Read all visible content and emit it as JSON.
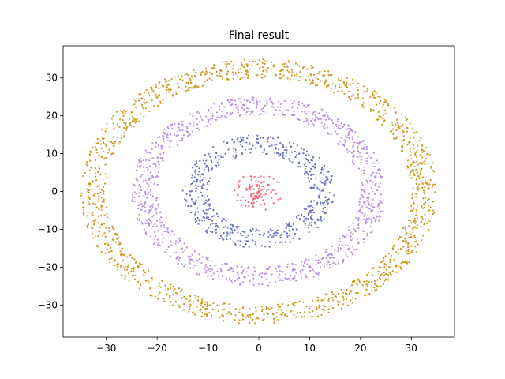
{
  "chart_data": {
    "type": "scatter",
    "title": "Final result",
    "xlabel": "",
    "ylabel": "",
    "xlim": [
      -38.5,
      38.5
    ],
    "ylim": [
      -38.5,
      38.5
    ],
    "xticks": [
      -30,
      -20,
      -10,
      0,
      10,
      20,
      30
    ],
    "yticks": [
      -30,
      -20,
      -10,
      0,
      10,
      20,
      30
    ],
    "grid": false,
    "legend": "none",
    "series": [
      {
        "color": "#f06b7a",
        "ring": {
          "inner_radius": 0,
          "outer_radius": 5,
          "count": 110
        }
      },
      {
        "color": "#6a72c4",
        "ring": {
          "inner_radius": 10,
          "outer_radius": 15,
          "count": 560
        }
      },
      {
        "color": "#b98ee0",
        "ring": {
          "inner_radius": 20,
          "outer_radius": 25,
          "count": 950
        }
      },
      {
        "color": "#cc9a1e",
        "ring": {
          "inner_radius": 30,
          "outer_radius": 35,
          "count": 1350
        }
      }
    ]
  }
}
